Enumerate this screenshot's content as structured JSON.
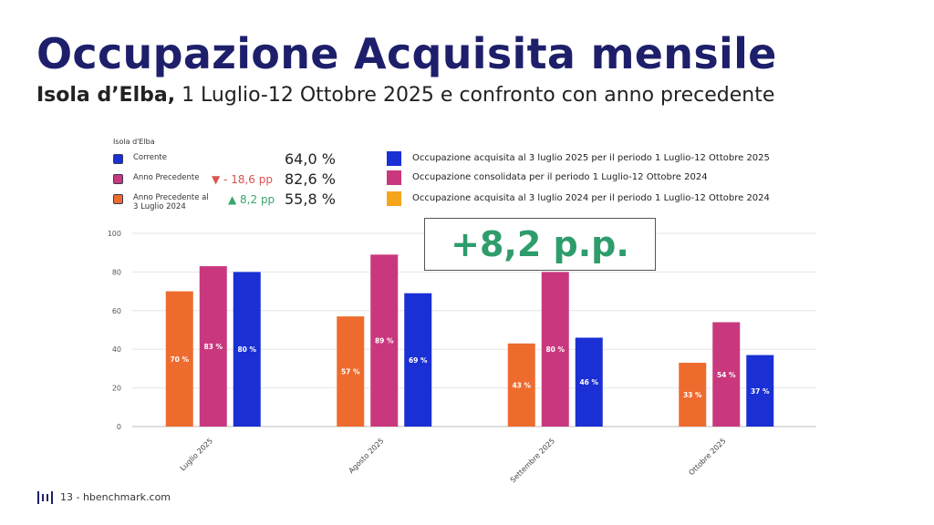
{
  "header": {
    "title": "Occupazione Acquisita mensile",
    "subtitle_bold": "Isola d’Elba,",
    "subtitle_rest": " 1 Luglio-12 Ottobre 2025 e confronto con anno precedente"
  },
  "kpi_panel": {
    "title": "Isola d'Elba",
    "rows": [
      {
        "label": "Corrente",
        "delta": "",
        "value": "64,0 %",
        "color": "#1a2fd4"
      },
      {
        "label": "Anno Precedente",
        "delta": "▼ - 18,6 pp",
        "delta_color": "#d9534f",
        "value": "82,6 %",
        "color": "#c9387e"
      },
      {
        "label_line1": "Anno Precedente al",
        "label_line2": "3 Luglio 2024",
        "delta": "▲ 8,2 pp",
        "delta_color": "#3aa66a",
        "value": "55,8 %",
        "color": "#ee6b2e"
      }
    ]
  },
  "legend": [
    {
      "text": "Occupazione acquisita al 3 luglio 2025 per il periodo 1 Luglio-12 Ottobre 2025",
      "color": "#1a2fd4"
    },
    {
      "text": "Occupazione consolidata per il periodo 1 Luglio-12 Ottobre 2024",
      "color": "#c9387e"
    },
    {
      "text": "Occupazione acquisita al 3 luglio 2024 per il periodo 1 Luglio-12 Ottobre 2024",
      "color": "#f5a51c"
    }
  ],
  "annotation": "+8,2 p.p.",
  "chart_data": {
    "type": "bar",
    "categories": [
      "Luglio 2025",
      "Agosto 2025",
      "Settembre 2025",
      "Ottobre 2025"
    ],
    "series": [
      {
        "values": [
          70,
          57,
          43,
          33
        ],
        "labels": [
          "70 %",
          "57 %",
          "43 %",
          "33 %"
        ],
        "color": "#ee6b2e"
      },
      {
        "values": [
          83,
          89,
          80,
          54
        ],
        "labels": [
          "83 %",
          "89 %",
          "80 %",
          "54 %"
        ],
        "color": "#c9387e"
      },
      {
        "values": [
          80,
          69,
          46,
          37
        ],
        "labels": [
          "80 %",
          "69 %",
          "46 %",
          "37 %"
        ],
        "color": "#1a2fd4"
      }
    ],
    "yticks": [
      0,
      20,
      40,
      60,
      80,
      100
    ],
    "ylim": [
      0,
      100
    ],
    "grid": true
  },
  "footer": {
    "text": "13 - hbenchmark.com",
    "logo_color": "#1e1f6b"
  }
}
